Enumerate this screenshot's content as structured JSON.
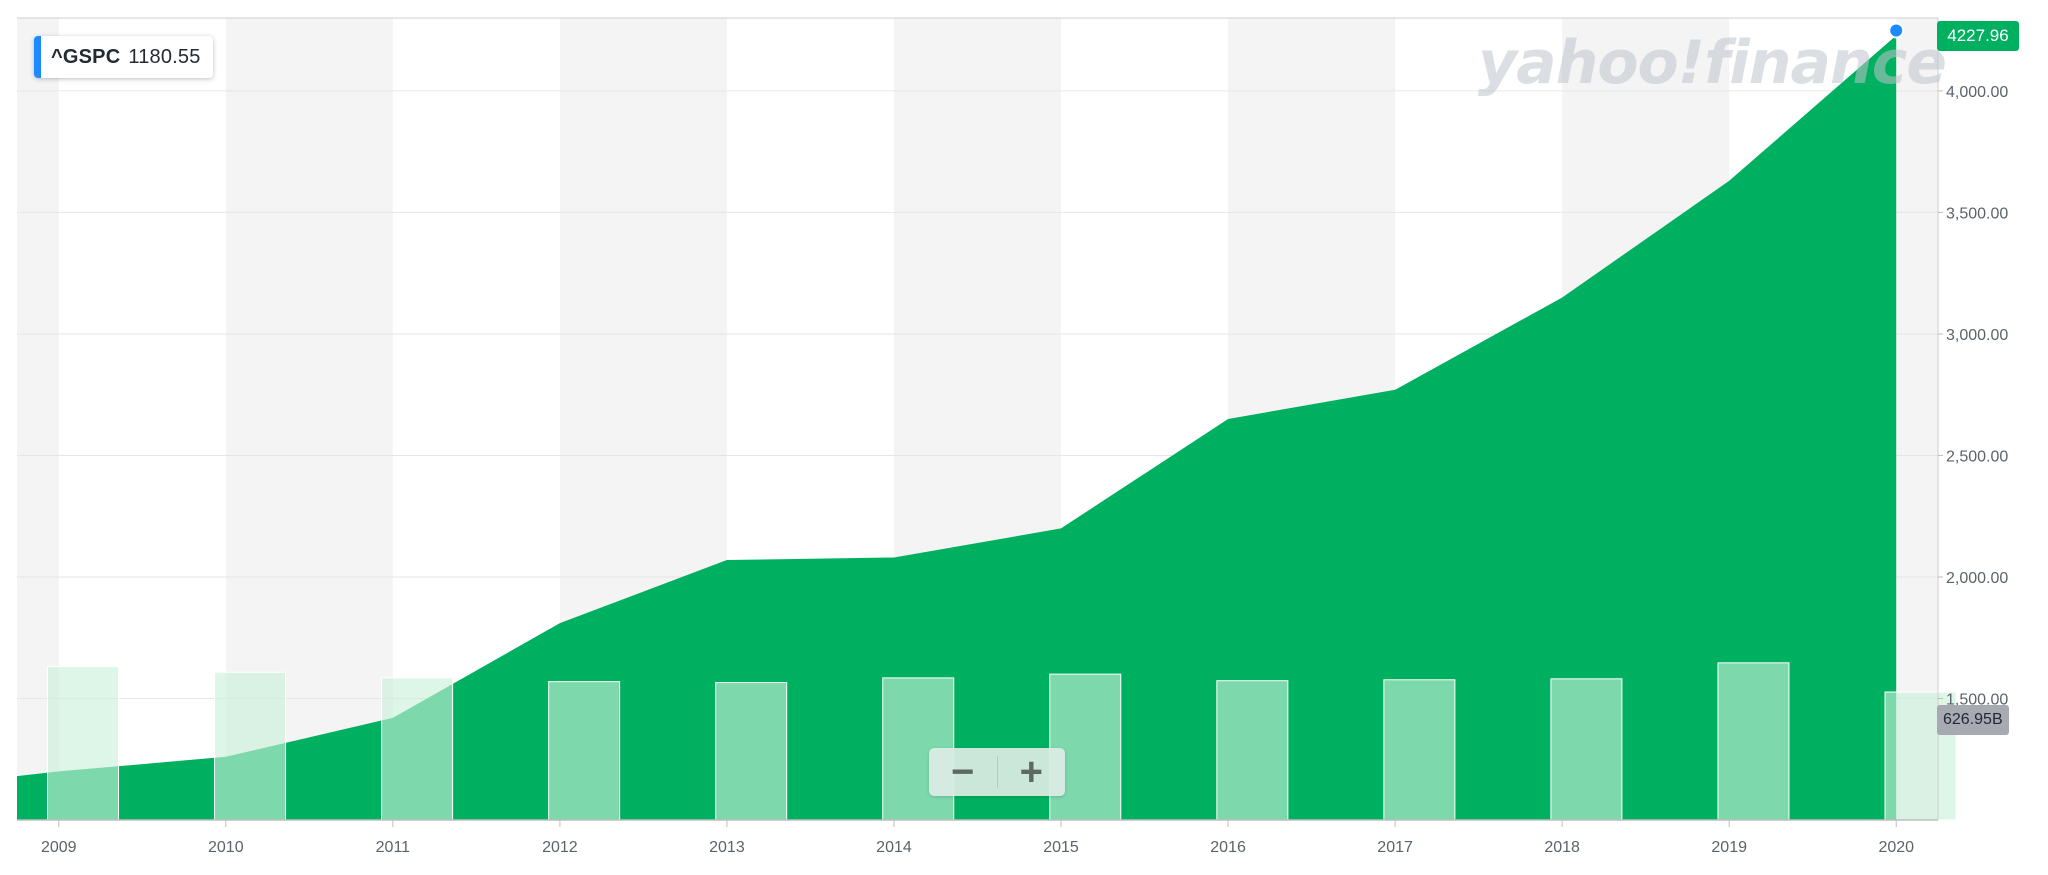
{
  "ticker": {
    "symbol": "^GSPC",
    "value": "1180.55"
  },
  "price_badge": "4227.96",
  "volume_badge": "626.95B",
  "watermark": "yahoo!finance",
  "zoom": {
    "minus": "−",
    "plus": "+"
  },
  "colors": {
    "area": "#00b061",
    "volume_bar": "#8ee0b5",
    "band": "#f4f4f4",
    "accent": "#1a8cff"
  },
  "chart_data": {
    "type": "area",
    "x": [
      "2008-10",
      "2009-01",
      "2010-01",
      "2011-01",
      "2012-01",
      "2013-01",
      "2014-01",
      "2015-01",
      "2016-01",
      "2017-01",
      "2018-01",
      "2019-01",
      "2020-01"
    ],
    "series": [
      {
        "values": [
          1180.55,
          1200,
          1260,
          1420,
          1810,
          2070,
          2080,
          2200,
          2650,
          2770,
          3150,
          3630,
          4227.96
        ]
      }
    ],
    "volume": {
      "x": [
        "2009",
        "2010",
        "2011",
        "2012",
        "2013",
        "2014",
        "2015",
        "2016",
        "2017",
        "2018",
        "2019",
        "2020"
      ],
      "values": [
        1630,
        1570,
        1510,
        1470,
        1460,
        1510,
        1550,
        1480,
        1490,
        1500,
        1670,
        1360
      ],
      "last_label": "626.95B"
    },
    "xlabel": "",
    "ylabel": "",
    "x_ticks": [
      "2009",
      "2010",
      "2011",
      "2012",
      "2013",
      "2014",
      "2015",
      "2016",
      "2017",
      "2018",
      "2019",
      "2020"
    ],
    "y_ticks": [
      "1,500.00",
      "2,000.00",
      "2,500.00",
      "3,000.00",
      "3,500.00",
      "4,000.00"
    ],
    "y_tick_values": [
      1500,
      2000,
      2500,
      3000,
      3500,
      4000
    ],
    "ylim": [
      1000,
      4300
    ],
    "grid": true
  }
}
